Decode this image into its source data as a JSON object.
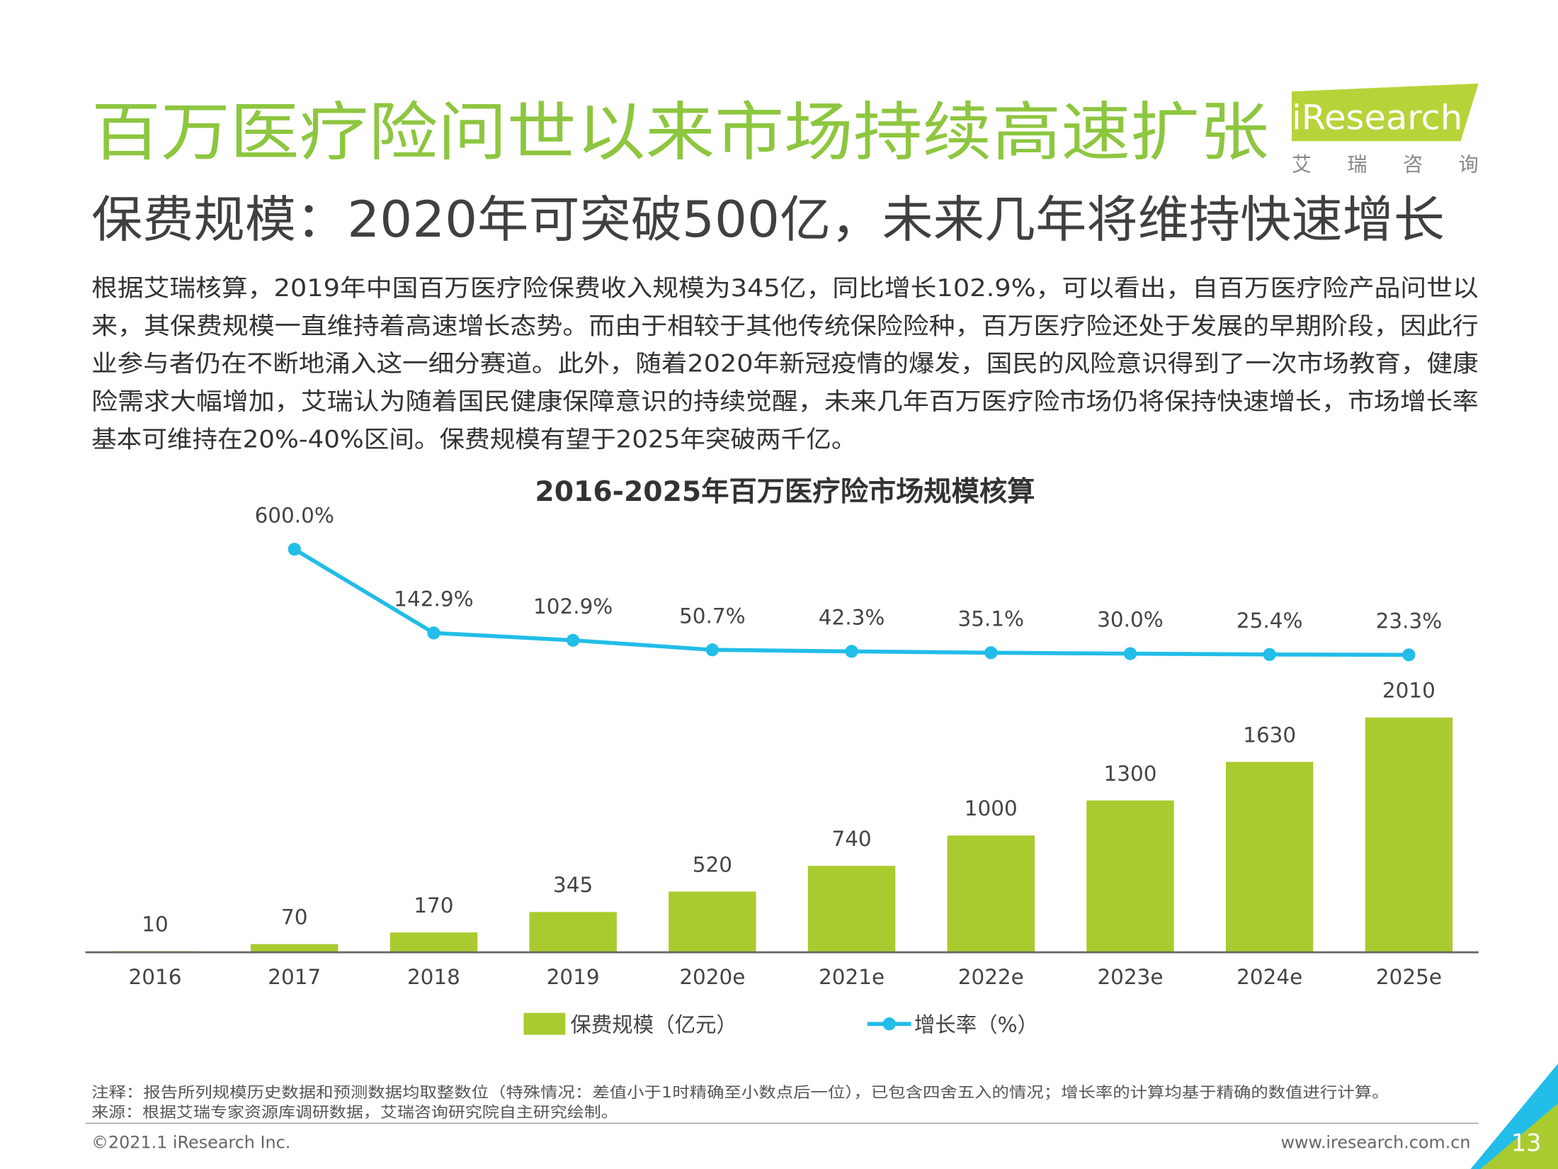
{
  "header": {
    "title": "百万医疗险问世以来市场持续高速扩张",
    "subtitle": "保费规模：2020年可突破500亿，未来几年将维持快速增长",
    "logo": {
      "name": "iResearch",
      "cn": "艾瑞咨询"
    }
  },
  "body": {
    "lines": [
      "根据艾瑞核算，2019年中国百万医疗险保费收入规模为345亿，同比增长102.9%，可以看出，自百万医疗险产品问世以",
      "来，其保费规模一直维持着高速增长态势。而由于相较于其他传统保险险种，百万医疗险还处于发展的早期阶段，因此行",
      "业参与者仍在不断地涌入这一细分赛道。此外，随着2020年新冠疫情的爆发，国民的风险意识得到了一次市场教育，健康",
      "险需求大幅增加，艾瑞认为随着国民健康保障意识的持续觉醒，未来几年百万医疗险市场仍将保持快速增长，市场增长率",
      "基本可维持在20%-40%区间。保费规模有望于2025年突破两千亿。"
    ]
  },
  "chart_data": {
    "type": "bar",
    "title": "2016-2025年百万医疗险市场规模核算",
    "categories": [
      "2016",
      "2017",
      "2018",
      "2019",
      "2020e",
      "2021e",
      "2022e",
      "2023e",
      "2024e",
      "2025e"
    ],
    "series": [
      {
        "name": "保费规模（亿元）",
        "type": "bar",
        "color": "#aacb2f",
        "values": [
          10,
          70,
          170,
          345,
          520,
          740,
          1000,
          1300,
          1630,
          2010
        ]
      },
      {
        "name": "增长率（%）",
        "type": "line",
        "axis": "y2",
        "color": "#22bde8",
        "values": [
          null,
          600.0,
          142.9,
          102.9,
          50.7,
          42.3,
          35.1,
          30.0,
          25.4,
          23.3
        ],
        "value_labels": [
          null,
          "600.0%",
          "142.9%",
          "102.9%",
          "50.7%",
          "42.3%",
          "35.1%",
          "30.0%",
          "25.4%",
          "23.3%"
        ]
      }
    ],
    "ylim": [
      0,
      4000
    ],
    "y2lim": [
      -1600,
      950
    ],
    "legend": "bottom"
  },
  "footer": {
    "note": "注释：报告所列规模历史数据和预测数据均取整数位（特殊情况：差值小于1时精确至小数点后一位），已包含四舍五入的情况；增长率的计算均基于精确的数值进行计算。",
    "source": "来源：根据艾瑞专家资源库调研数据，艾瑞咨询研究院自主研究绘制。",
    "copyright": "©2021.1 iResearch Inc.",
    "url": "www.iresearch.com.cn",
    "page": "13"
  }
}
